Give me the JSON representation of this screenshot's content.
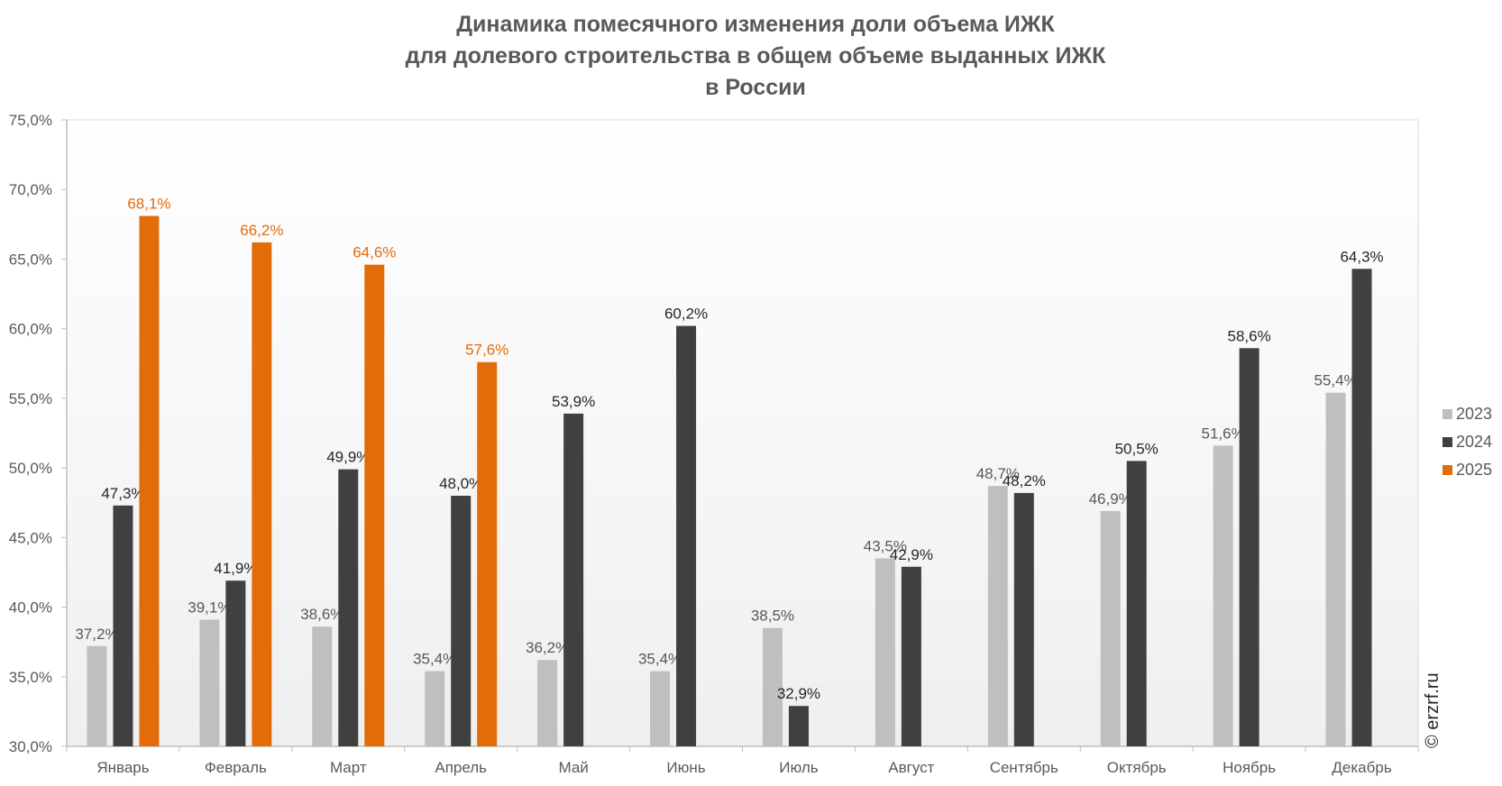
{
  "chart_data": {
    "type": "bar",
    "title": [
      "Динамика помесячного изменения доли объема ИЖК",
      "для долевого строительства в общем объеме выданных ИЖК",
      "в России"
    ],
    "categories": [
      "Январь",
      "Февраль",
      "Март",
      "Апрель",
      "Май",
      "Июнь",
      "Июль",
      "Август",
      "Сентябрь",
      "Октябрь",
      "Ноябрь",
      "Декабрь"
    ],
    "series": [
      {
        "name": "2023",
        "color": "#bfbfbf",
        "label_color": "#595959",
        "values": [
          37.2,
          39.1,
          38.6,
          35.4,
          36.2,
          35.4,
          38.5,
          43.5,
          48.7,
          46.9,
          51.6,
          55.4
        ]
      },
      {
        "name": "2024",
        "color": "#404040",
        "label_color": "#262626",
        "values": [
          47.3,
          41.9,
          49.9,
          48.0,
          53.9,
          60.2,
          32.9,
          42.9,
          48.2,
          50.5,
          58.6,
          64.3
        ]
      },
      {
        "name": "2025",
        "color": "#e36c0a",
        "label_color": "#e36c0a",
        "values": [
          68.1,
          66.2,
          64.6,
          57.6,
          null,
          null,
          null,
          null,
          null,
          null,
          null,
          null
        ]
      }
    ],
    "ylim": [
      30,
      75
    ],
    "yticks": [
      "30,0%",
      "35,0%",
      "40,0%",
      "45,0%",
      "50,0%",
      "55,0%",
      "60,0%",
      "65,0%",
      "70,0%",
      "75,0%"
    ],
    "ytick_values": [
      30,
      35,
      40,
      45,
      50,
      55,
      60,
      65,
      70,
      75
    ],
    "grid": false,
    "legend_position": "right",
    "xlabel": "",
    "ylabel": ""
  },
  "watermark": "© erzrf.ru"
}
